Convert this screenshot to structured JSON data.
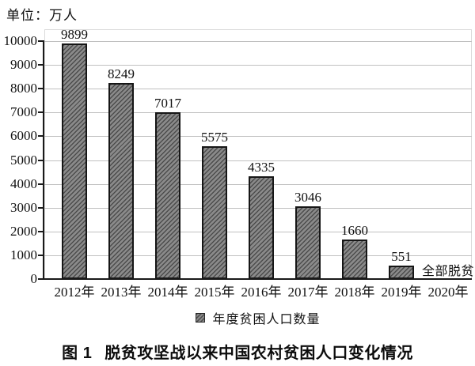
{
  "unit_label": "单位：万人",
  "legend": {
    "label": "年度贫困人口数量",
    "marker": "hatched-gray-square"
  },
  "caption": {
    "prefix": "图 1",
    "text": "脱贫攻坚战以来中国农村贫困人口变化情况"
  },
  "colors": {
    "bar_fill": "#8a8a8a",
    "bar_hatch": "#2a2a2a",
    "bar_border": "#161616",
    "gridline": "#c0c0c0",
    "axis": "#1a1a1a",
    "text": "#111111"
  },
  "chart_data": {
    "type": "bar",
    "title": "脱贫攻坚战以来中国农村贫困人口变化情况",
    "unit": "万人",
    "categories": [
      "2012年",
      "2013年",
      "2014年",
      "2015年",
      "2016年",
      "2017年",
      "2018年",
      "2019年",
      "2020年"
    ],
    "values": [
      9899,
      8249,
      7017,
      5575,
      4335,
      3046,
      1660,
      551,
      null
    ],
    "bar_value_labels": [
      "9899",
      "8249",
      "7017",
      "5575",
      "4335",
      "3046",
      "1660",
      "551",
      null
    ],
    "annotations": [
      {
        "category": "2020年",
        "text": "全部脱贫"
      }
    ],
    "xlabel": "",
    "ylabel": "万人",
    "ylim": [
      0,
      10500
    ],
    "ytick_step": 1000,
    "ytick_labels": [
      "0",
      "1000",
      "2000",
      "3000",
      "4000",
      "5000",
      "6000",
      "7000",
      "8000",
      "9000",
      "10000"
    ],
    "grid": "horizontal",
    "legend_entries": [
      "年度贫困人口数量"
    ],
    "legend_position": "bottom",
    "hatch": "diagonal-forward"
  }
}
